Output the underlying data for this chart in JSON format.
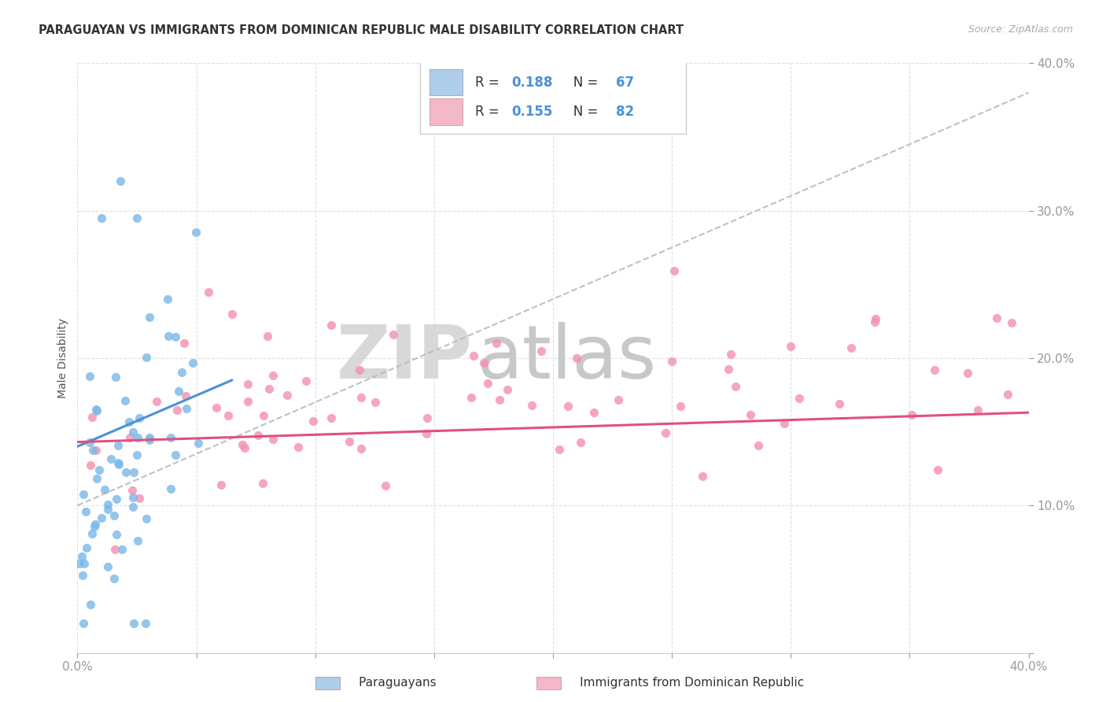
{
  "title": "PARAGUAYAN VS IMMIGRANTS FROM DOMINICAN REPUBLIC MALE DISABILITY CORRELATION CHART",
  "source": "Source: ZipAtlas.com",
  "ylabel": "Male Disability",
  "xlim": [
    0.0,
    0.4
  ],
  "ylim": [
    0.0,
    0.4
  ],
  "watermark_zip": "ZIP",
  "watermark_atlas": "atlas",
  "background_color": "#ffffff",
  "grid_color": "#e0e0e0",
  "paraguayan_color": "#7ab8e8",
  "dominican_color": "#f48fb1",
  "paraguayan_line_color": "#4a90d9",
  "dominican_line_color": "#e05080",
  "dash_line_color": "#bbbbbb",
  "legend_patch_par": "#aecde8",
  "legend_patch_dom": "#f4b8c8",
  "legend_text_color": "#333333",
  "legend_value_color": "#4a90d9",
  "ytick_color": "#4a90d9",
  "xtick_color": "#4a90d9",
  "par_line_x": [
    0.0,
    0.065
  ],
  "par_line_y": [
    0.14,
    0.185
  ],
  "dom_line_x": [
    0.0,
    0.4
  ],
  "dom_line_y": [
    0.143,
    0.163
  ],
  "dash_line_x": [
    0.0,
    0.4
  ],
  "dash_line_y": [
    0.1,
    0.38
  ]
}
